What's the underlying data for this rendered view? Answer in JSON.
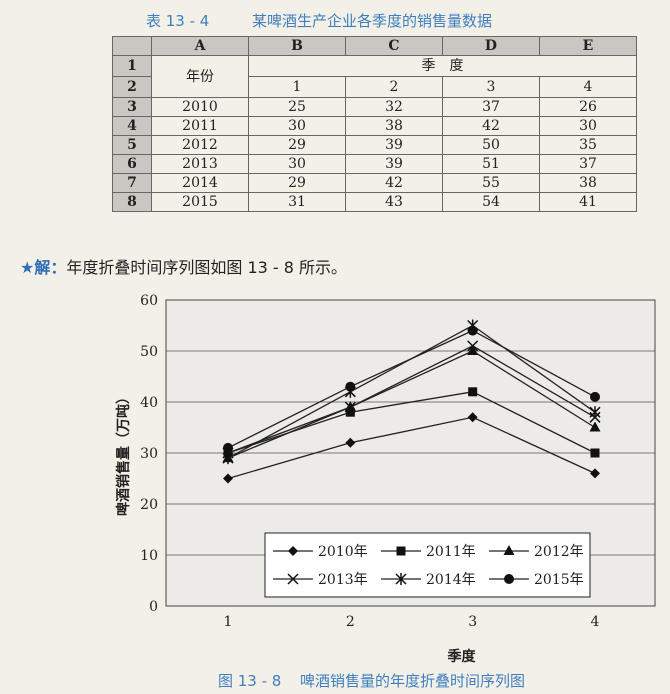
{
  "table_caption": {
    "number": "表 13 - 4",
    "title": "某啤酒生产企业各季度的销售量数据"
  },
  "sheet": {
    "col_headers": [
      "A",
      "B",
      "C",
      "D",
      "E"
    ],
    "row_headers": [
      "1",
      "2",
      "3",
      "4",
      "5",
      "6",
      "7",
      "8"
    ],
    "year_label": "年份",
    "quarter_label": "季　度",
    "quarters": [
      "1",
      "2",
      "3",
      "4"
    ],
    "rows": [
      [
        "2010",
        "25",
        "32",
        "37",
        "26"
      ],
      [
        "2011",
        "30",
        "38",
        "42",
        "30"
      ],
      [
        "2012",
        "29",
        "39",
        "50",
        "35"
      ],
      [
        "2013",
        "30",
        "39",
        "51",
        "37"
      ],
      [
        "2014",
        "29",
        "42",
        "55",
        "38"
      ],
      [
        "2015",
        "31",
        "43",
        "54",
        "41"
      ]
    ]
  },
  "solution": {
    "star": "★解：",
    "text": "年度折叠时间序列图如图 13 - 8 所示。"
  },
  "figure_caption": {
    "number": "图 13 - 8",
    "title": "啤酒销售量的年度折叠时间序列图"
  },
  "chart_data": {
    "type": "line",
    "categories": [
      "1",
      "2",
      "3",
      "4"
    ],
    "xlabel": "季度",
    "ylabel": "啤酒销售量（万吨）",
    "ylim": [
      0,
      60
    ],
    "yticks": [
      "0",
      "10",
      "20",
      "30",
      "40",
      "50",
      "60"
    ],
    "grid": true,
    "legend_position": "bottom-right",
    "series": [
      {
        "name": "2010年",
        "marker": "diamond",
        "values": [
          25,
          32,
          37,
          26
        ]
      },
      {
        "name": "2011年",
        "marker": "square",
        "values": [
          30,
          38,
          42,
          30
        ]
      },
      {
        "name": "2012年",
        "marker": "triangle",
        "values": [
          29,
          39,
          50,
          35
        ]
      },
      {
        "name": "2013年",
        "marker": "x",
        "values": [
          30,
          39,
          51,
          37
        ]
      },
      {
        "name": "2014年",
        "marker": "star",
        "values": [
          29,
          42,
          55,
          38
        ]
      },
      {
        "name": "2015年",
        "marker": "circle",
        "values": [
          31,
          43,
          54,
          41
        ]
      }
    ]
  }
}
